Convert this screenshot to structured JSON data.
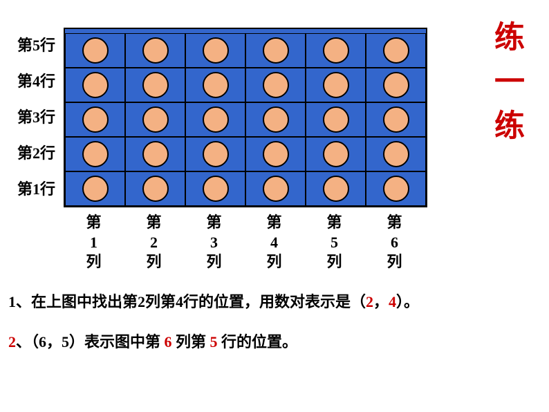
{
  "title": "练一练",
  "grid": {
    "rows": 5,
    "cols": 6,
    "row_labels": [
      "第5行",
      "第4行",
      "第3行",
      "第2行",
      "第1行"
    ],
    "col_labels": [
      "第1列",
      "第2列",
      "第3列",
      "第4列",
      "第5列",
      "第6列"
    ],
    "cell_bg_color": "#3366cc",
    "circle_fill_color": "#f4b183",
    "circle_border_color": "#000000",
    "grid_border_color": "#000000"
  },
  "q1": {
    "prefix": "1、在上图中找出第2列第4行的位置，用数对表示是（",
    "ans1": "2",
    "comma": "，",
    "ans2": "4",
    "suffix": "）。"
  },
  "q2": {
    "num": "2",
    "part1": "、（6，5）表示图中第 ",
    "ans1": "6",
    "part2": " 列第 ",
    "ans2": "5",
    "part3": " 行的位置。"
  }
}
